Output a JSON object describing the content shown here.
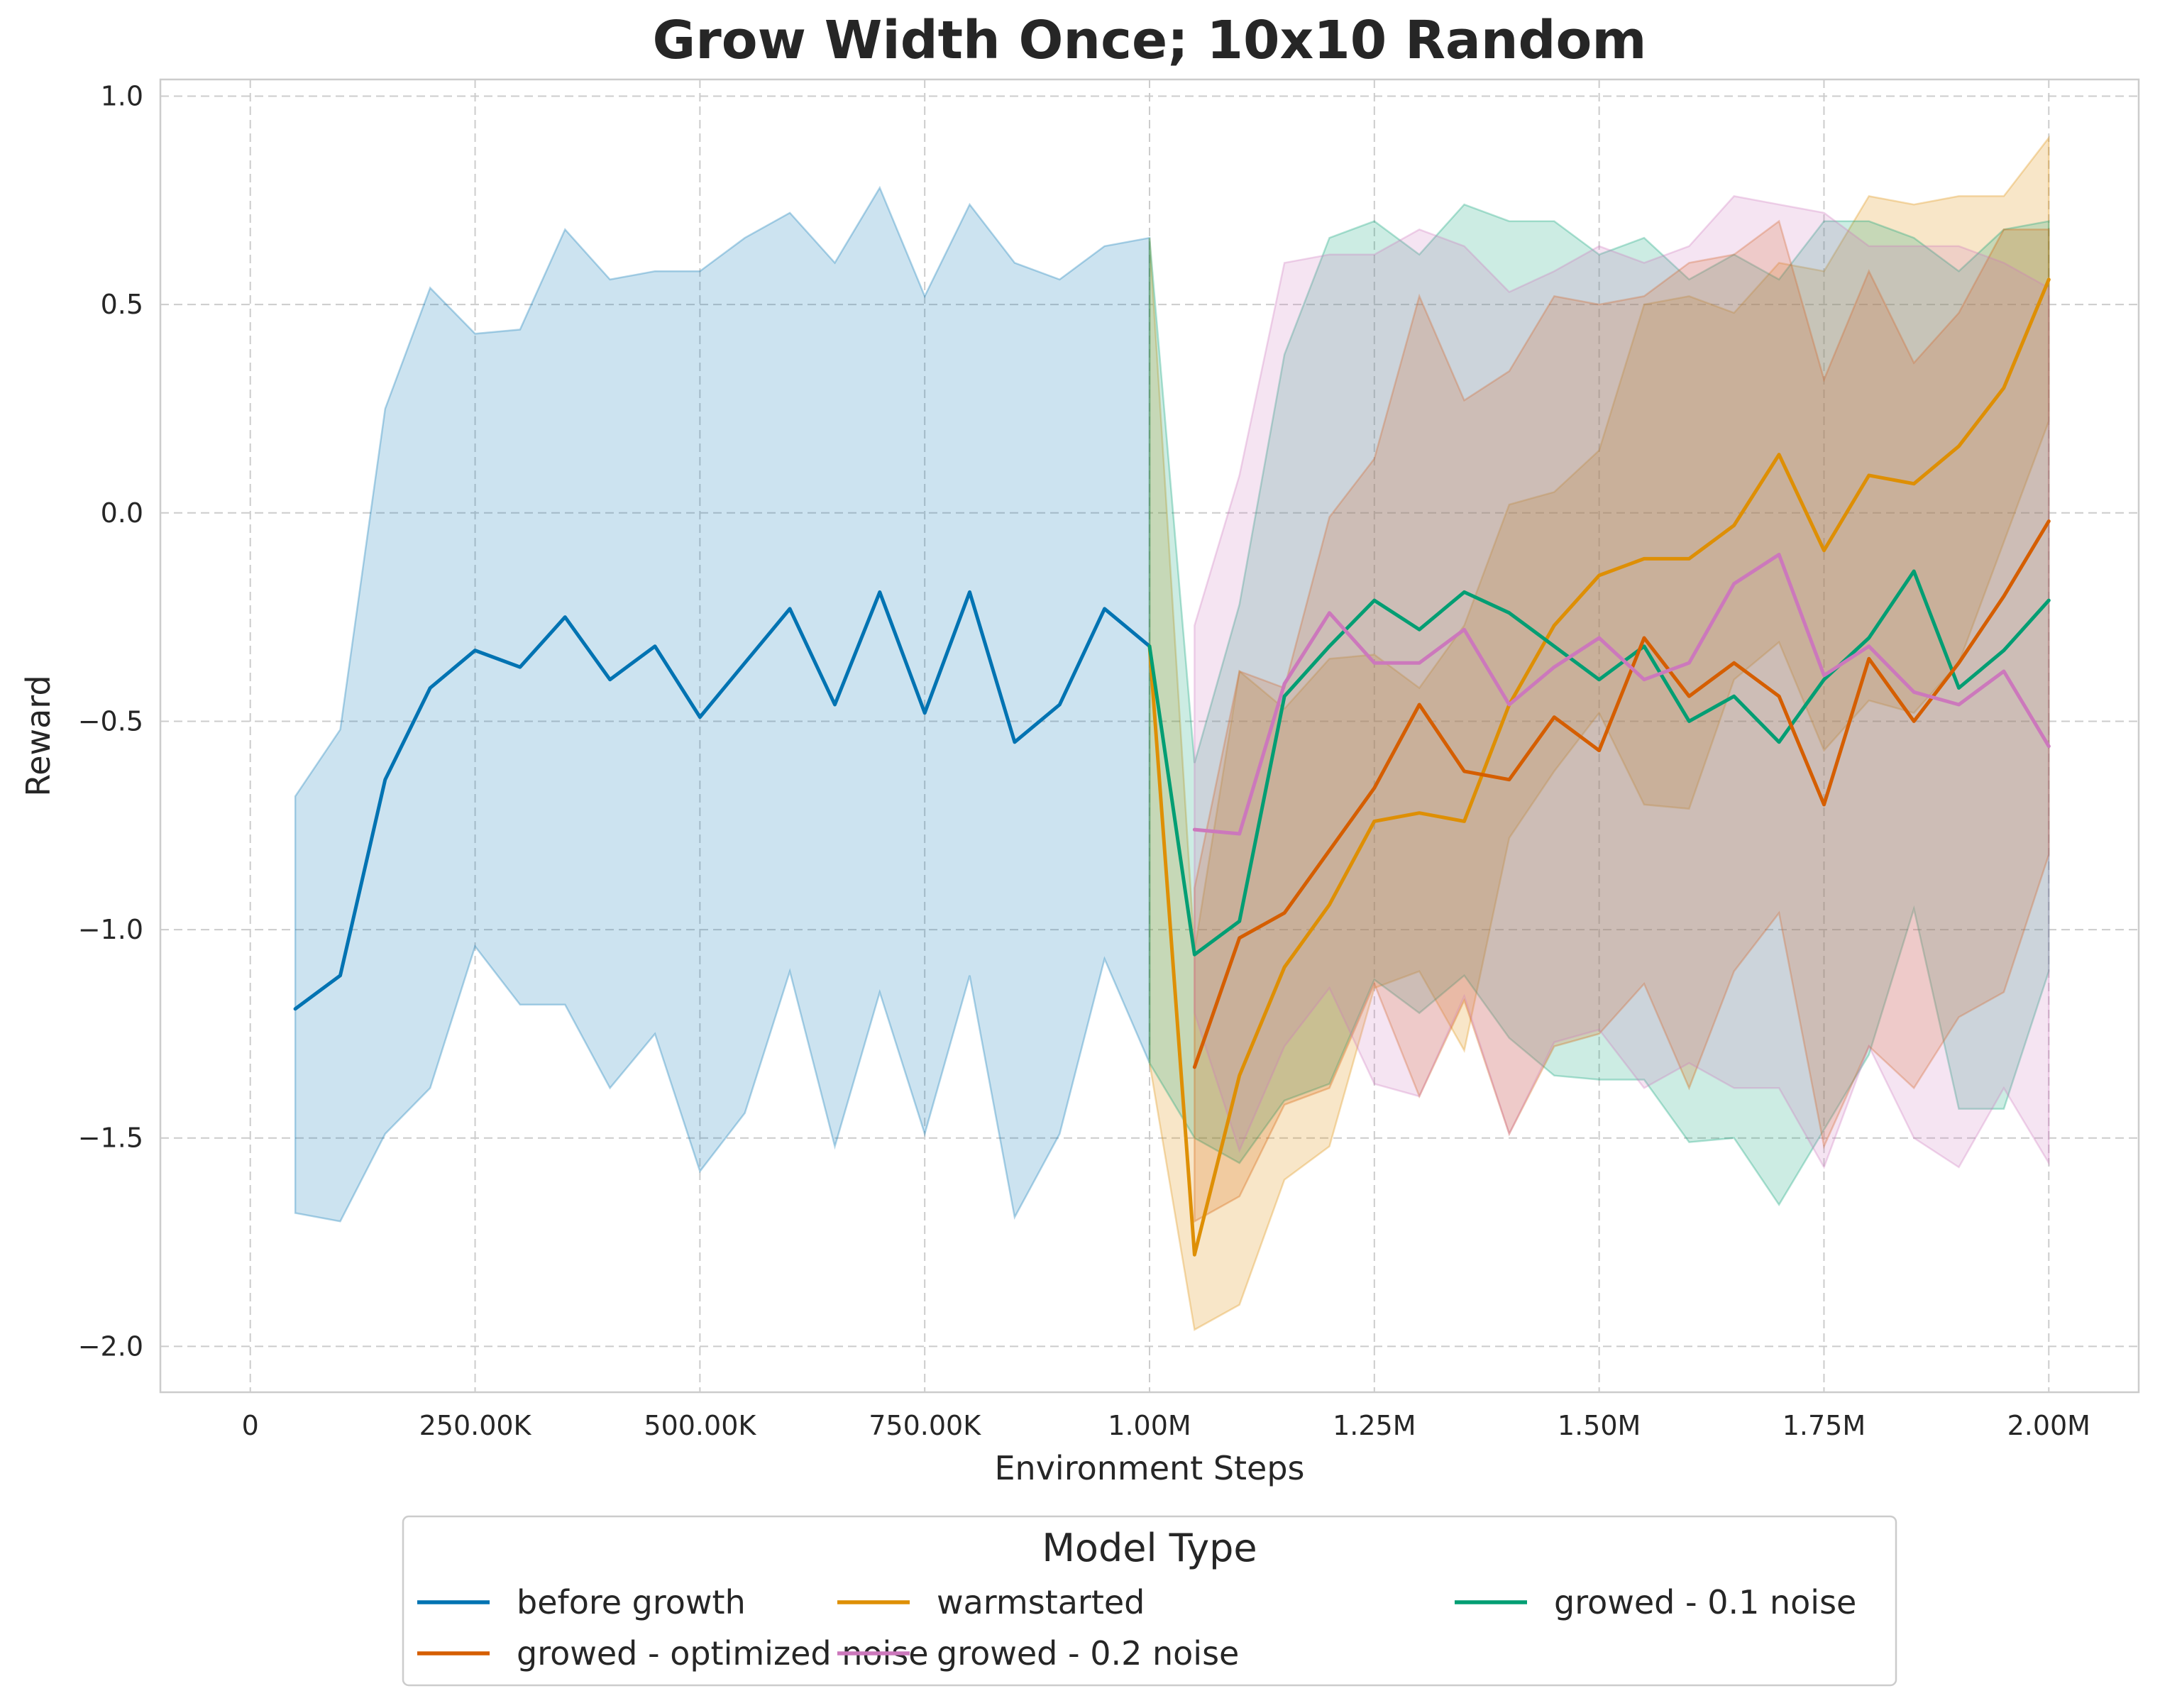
{
  "chart_data": {
    "type": "line",
    "title": "Grow Width Once; 10x10 Random",
    "xlabel": "Environment Steps",
    "ylabel": "Reward",
    "xlim": [
      -100000,
      2100000
    ],
    "ylim": [
      -2.11,
      1.04
    ],
    "xticks": [
      {
        "value": 0,
        "label": "0"
      },
      {
        "value": 250000,
        "label": "250.00K"
      },
      {
        "value": 500000,
        "label": "500.00K"
      },
      {
        "value": 750000,
        "label": "750.00K"
      },
      {
        "value": 1000000,
        "label": "1.00M"
      },
      {
        "value": 1250000,
        "label": "1.25M"
      },
      {
        "value": 1500000,
        "label": "1.50M"
      },
      {
        "value": 1750000,
        "label": "1.75M"
      },
      {
        "value": 2000000,
        "label": "2.00M"
      }
    ],
    "yticks": [
      {
        "value": 1.0,
        "label": "1.0"
      },
      {
        "value": 0.5,
        "label": "0.5"
      },
      {
        "value": 0.0,
        "label": "0.0"
      },
      {
        "value": -0.5,
        "label": "−0.5"
      },
      {
        "value": -1.0,
        "label": "−1.0"
      },
      {
        "value": -1.5,
        "label": "−1.5"
      },
      {
        "value": -2.0,
        "label": "−2.0"
      }
    ],
    "grid": true,
    "legend": {
      "title": "Model Type",
      "placement": "bottom-center, below plot",
      "columns": 3
    },
    "series": [
      {
        "name": "before growth",
        "color": "#0173b2",
        "x": [
          50000,
          100000,
          150000,
          200000,
          250000,
          300000,
          350000,
          400000,
          450000,
          500000,
          550000,
          600000,
          650000,
          700000,
          750000,
          800000,
          850000,
          900000,
          950000,
          1000000
        ],
        "y": [
          -1.19,
          -1.11,
          -0.64,
          -0.42,
          -0.33,
          -0.37,
          -0.25,
          -0.4,
          -0.32,
          -0.49,
          -0.36,
          -0.23,
          -0.46,
          -0.19,
          -0.48,
          -0.19,
          -0.55,
          -0.46,
          -0.23,
          -0.32
        ],
        "upper": [
          -0.68,
          -0.52,
          0.25,
          0.54,
          0.43,
          0.44,
          0.68,
          0.56,
          0.58,
          0.58,
          0.66,
          0.72,
          0.6,
          0.78,
          0.52,
          0.74,
          0.6,
          0.56,
          0.64,
          0.66
        ],
        "lower": [
          -1.68,
          -1.7,
          -1.49,
          -1.38,
          -1.04,
          -1.18,
          -1.18,
          -1.38,
          -1.25,
          -1.58,
          -1.44,
          -1.1,
          -1.52,
          -1.15,
          -1.49,
          -1.11,
          -1.69,
          -1.49,
          -1.07,
          -1.32
        ]
      },
      {
        "name": "warmstarted",
        "color": "#de8f05",
        "x": [
          1000000,
          1050000,
          1100000,
          1150000,
          1200000,
          1250000,
          1300000,
          1350000,
          1400000,
          1450000,
          1500000,
          1550000,
          1600000,
          1650000,
          1700000,
          1750000,
          1800000,
          1850000,
          1900000,
          1950000,
          2000000
        ],
        "y": [
          -0.32,
          -1.78,
          -1.35,
          -1.09,
          -0.94,
          -0.74,
          -0.72,
          -0.74,
          -0.46,
          -0.27,
          -0.15,
          -0.11,
          -0.11,
          -0.03,
          0.14,
          -0.09,
          0.09,
          0.07,
          0.16,
          0.3,
          0.56
        ],
        "upper": [
          0.66,
          -1.05,
          -0.38,
          -0.47,
          -0.35,
          -0.34,
          -0.42,
          -0.27,
          0.02,
          0.05,
          0.15,
          0.5,
          0.52,
          0.48,
          0.6,
          0.58,
          0.76,
          0.74,
          0.76,
          0.76,
          0.9
        ],
        "lower": [
          -1.32,
          -1.96,
          -1.9,
          -1.6,
          -1.52,
          -1.14,
          -1.1,
          -1.29,
          -0.78,
          -0.62,
          -0.48,
          -0.7,
          -0.71,
          -0.4,
          -0.31,
          -0.57,
          -0.45,
          -0.48,
          -0.36,
          -0.07,
          0.22
        ]
      },
      {
        "name": "growed - 0.1 noise",
        "color": "#029e73",
        "x": [
          1000000,
          1050000,
          1100000,
          1150000,
          1200000,
          1250000,
          1300000,
          1350000,
          1400000,
          1450000,
          1500000,
          1550000,
          1600000,
          1650000,
          1700000,
          1750000,
          1800000,
          1850000,
          1900000,
          1950000,
          2000000
        ],
        "y": [
          -0.32,
          -1.06,
          -0.98,
          -0.44,
          -0.32,
          -0.21,
          -0.28,
          -0.19,
          -0.24,
          -0.32,
          -0.4,
          -0.32,
          -0.5,
          -0.44,
          -0.55,
          -0.4,
          -0.3,
          -0.14,
          -0.42,
          -0.33,
          -0.21
        ],
        "upper": [
          0.66,
          -0.6,
          -0.22,
          0.38,
          0.66,
          0.7,
          0.62,
          0.74,
          0.7,
          0.7,
          0.62,
          0.66,
          0.56,
          0.62,
          0.56,
          0.7,
          0.7,
          0.66,
          0.58,
          0.68,
          0.7
        ],
        "lower": [
          -1.32,
          -1.5,
          -1.56,
          -1.41,
          -1.37,
          -1.12,
          -1.2,
          -1.11,
          -1.26,
          -1.35,
          -1.36,
          -1.36,
          -1.51,
          -1.5,
          -1.66,
          -1.48,
          -1.3,
          -0.95,
          -1.43,
          -1.43,
          -1.1
        ]
      },
      {
        "name": "growed - optimized noise",
        "color": "#d55e00",
        "x": [
          1050000,
          1100000,
          1150000,
          1200000,
          1250000,
          1300000,
          1350000,
          1400000,
          1450000,
          1500000,
          1550000,
          1600000,
          1650000,
          1700000,
          1750000,
          1800000,
          1850000,
          1900000,
          1950000,
          2000000
        ],
        "y": [
          -1.33,
          -1.02,
          -0.96,
          -0.81,
          -0.66,
          -0.46,
          -0.62,
          -0.64,
          -0.49,
          -0.57,
          -0.3,
          -0.44,
          -0.36,
          -0.44,
          -0.7,
          -0.35,
          -0.5,
          -0.36,
          -0.2,
          -0.02
        ],
        "upper": [
          -0.9,
          -0.38,
          -0.42,
          -0.01,
          0.13,
          0.52,
          0.27,
          0.34,
          0.52,
          0.5,
          0.52,
          0.6,
          0.62,
          0.7,
          0.32,
          0.58,
          0.36,
          0.48,
          0.68,
          0.68
        ],
        "lower": [
          -1.7,
          -1.64,
          -1.42,
          -1.38,
          -1.13,
          -1.4,
          -1.17,
          -1.49,
          -1.28,
          -1.25,
          -1.13,
          -1.38,
          -1.1,
          -0.96,
          -1.52,
          -1.28,
          -1.38,
          -1.21,
          -1.15,
          -0.82
        ]
      },
      {
        "name": "growed - 0.2 noise",
        "color": "#cc78bc",
        "x": [
          1050000,
          1100000,
          1150000,
          1200000,
          1250000,
          1300000,
          1350000,
          1400000,
          1450000,
          1500000,
          1550000,
          1600000,
          1650000,
          1700000,
          1750000,
          1800000,
          1850000,
          1900000,
          1950000,
          2000000
        ],
        "y": [
          -0.76,
          -0.77,
          -0.41,
          -0.24,
          -0.36,
          -0.36,
          -0.28,
          -0.46,
          -0.37,
          -0.3,
          -0.4,
          -0.36,
          -0.17,
          -0.1,
          -0.39,
          -0.32,
          -0.43,
          -0.46,
          -0.38,
          -0.56
        ],
        "upper": [
          -0.27,
          0.09,
          0.6,
          0.62,
          0.62,
          0.68,
          0.64,
          0.53,
          0.58,
          0.64,
          0.6,
          0.64,
          0.76,
          0.74,
          0.72,
          0.64,
          0.64,
          0.64,
          0.6,
          0.54
        ],
        "lower": [
          -1.2,
          -1.53,
          -1.28,
          -1.14,
          -1.37,
          -1.4,
          -1.16,
          -1.49,
          -1.27,
          -1.24,
          -1.38,
          -1.32,
          -1.38,
          -1.38,
          -1.57,
          -1.28,
          -1.5,
          -1.57,
          -1.38,
          -1.56
        ]
      }
    ]
  }
}
